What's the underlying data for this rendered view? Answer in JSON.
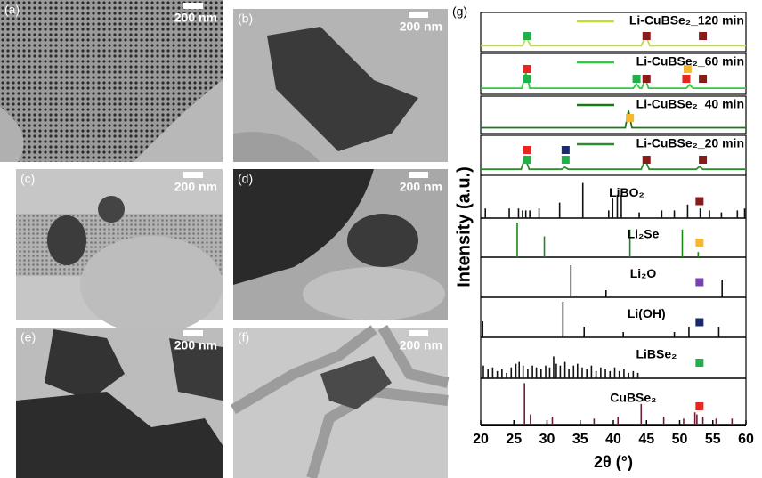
{
  "images": [
    {
      "label": "(a)",
      "scale": "200 nm"
    },
    {
      "label": "(b)",
      "scale": "200 nm"
    },
    {
      "label": "(c)",
      "scale": "200 nm"
    },
    {
      "label": "(d)",
      "scale": "200 nm"
    },
    {
      "label": "(e)",
      "scale": "200 nm"
    },
    {
      "label": "(f)",
      "scale": "200 nm"
    }
  ],
  "chart_data": {
    "type": "xrd",
    "panel_label": "(g)",
    "xlabel": "2θ (°)",
    "ylabel": "Intensity (a.u.)",
    "xlim": [
      20,
      60
    ],
    "xticks": [
      20,
      25,
      30,
      35,
      40,
      45,
      50,
      55,
      60
    ],
    "ylim": [
      0,
      1
    ],
    "patterns": [
      {
        "name": "Li-CuBSe₂_120 min",
        "color": "#c2dc3c",
        "x": [
          20,
          26.3,
          26.9,
          27.5,
          44.2,
          44.9,
          45.5,
          60
        ],
        "values": [
          0.1,
          0.1,
          0.35,
          0.1,
          0.1,
          0.4,
          0.1,
          0.1
        ],
        "markers": [
          {
            "x": 27,
            "color": "#22b04a"
          },
          {
            "x": 45,
            "color": "#8b1a1a"
          },
          {
            "x": 53.5,
            "color": "#8b1a1a"
          }
        ]
      },
      {
        "name": "Li-CuBSe₂_60 min",
        "color": "#2ecc40",
        "x": [
          20,
          26.2,
          26.8,
          27.4,
          43,
          43.5,
          44,
          44.3,
          44.8,
          45.3,
          51,
          51.5,
          52,
          60
        ],
        "values": [
          0.1,
          0.1,
          0.55,
          0.1,
          0.1,
          0.22,
          0.1,
          0.1,
          0.38,
          0.1,
          0.1,
          0.2,
          0.1,
          0.1
        ],
        "markers": [
          {
            "x": 27,
            "color": "#22b04a"
          },
          {
            "x": 27,
            "color": "#e8261f"
          },
          {
            "x": 43.5,
            "color": "#22b04a"
          },
          {
            "x": 45,
            "color": "#8b1a1a"
          },
          {
            "x": 51,
            "color": "#e8261f"
          },
          {
            "x": 51.2,
            "color": "#f5b82e"
          },
          {
            "x": 53.5,
            "color": "#8b1a1a"
          }
        ]
      },
      {
        "name": "Li-CuBSe₂_40 min",
        "color": "#1a7a1a",
        "x": [
          20,
          41.8,
          42.3,
          42.8,
          60
        ],
        "values": [
          0.1,
          0.1,
          0.65,
          0.1,
          0.1
        ],
        "markers": [
          {
            "x": 42.5,
            "color": "#f5b82e"
          }
        ]
      },
      {
        "name": "Li-CuBSe₂_20 min",
        "color": "#2e8b2e",
        "x": [
          20,
          26.1,
          26.7,
          27.3,
          32.2,
          32.7,
          33.2,
          44.2,
          44.8,
          45.4,
          52.5,
          53,
          53.5,
          60
        ],
        "values": [
          0.1,
          0.1,
          0.45,
          0.1,
          0.1,
          0.16,
          0.1,
          0.1,
          0.38,
          0.1,
          0.1,
          0.18,
          0.1,
          0.1
        ],
        "markers": [
          {
            "x": 27,
            "color": "#22b04a"
          },
          {
            "x": 27,
            "color": "#e8261f"
          },
          {
            "x": 32.8,
            "color": "#22b04a"
          },
          {
            "x": 32.8,
            "color": "#1a2a6c"
          },
          {
            "x": 45,
            "color": "#8b1a1a"
          },
          {
            "x": 53.5,
            "color": "#8b1a1a"
          }
        ]
      }
    ],
    "references": [
      {
        "name": "LiBO₂",
        "color": "#111111",
        "marker": "#8b1a1a",
        "x": [
          20.7,
          24.3,
          25.7,
          26.3,
          26.8,
          27.4,
          28.8,
          31.9,
          35.4,
          39.3,
          39.9,
          40.6,
          41.2,
          43.9,
          47.3,
          49.2,
          51.2,
          53.1,
          54.5,
          56.3,
          58.7,
          59.8
        ],
        "values": [
          0.2,
          0.2,
          0.2,
          0.15,
          0.15,
          0.15,
          0.2,
          0.35,
          0.85,
          0.15,
          0.45,
          0.55,
          0.55,
          0.1,
          0.15,
          0.15,
          0.3,
          0.2,
          0.15,
          0.1,
          0.15,
          0.2
        ]
      },
      {
        "name": "Li₂Se",
        "color": "#1a8a1a",
        "marker": "#f5b82e",
        "x": [
          25.5,
          29.6,
          42.5,
          50.4,
          52.8
        ],
        "values": [
          0.95,
          0.55,
          0.75,
          0.75,
          0.1
        ]
      },
      {
        "name": "Li₂O",
        "color": "#111111",
        "marker": "#7b3fb5",
        "x": [
          33.6,
          38.9,
          56.4
        ],
        "values": [
          0.85,
          0.15,
          0.45
        ]
      },
      {
        "name": "Li(OH)",
        "color": "#111111",
        "marker": "#1a2a6c",
        "x": [
          20.3,
          32.4,
          35.6,
          41.5,
          49.2,
          51.4,
          55.9
        ],
        "values": [
          0.4,
          0.95,
          0.25,
          0.1,
          0.1,
          0.25,
          0.25
        ]
      },
      {
        "name": "LiBSe₂",
        "color": "#111111",
        "marker": "#22b04a",
        "x": [
          20.4,
          21.1,
          21.8,
          22.5,
          23.2,
          23.9,
          24.6,
          25.3,
          25.8,
          26.4,
          27.1,
          27.8,
          28.4,
          29.1,
          29.8,
          30.4,
          31.0,
          31.4,
          32.0,
          32.7,
          33.3,
          34.0,
          34.6,
          35.3,
          36.0,
          36.7,
          37.4,
          38.1,
          38.8,
          39.5,
          40.2,
          40.9,
          41.6,
          42.3,
          43.0,
          43.7
        ],
        "values": [
          0.3,
          0.2,
          0.25,
          0.15,
          0.2,
          0.1,
          0.25,
          0.35,
          0.4,
          0.3,
          0.2,
          0.3,
          0.25,
          0.2,
          0.3,
          0.25,
          0.55,
          0.35,
          0.3,
          0.4,
          0.2,
          0.3,
          0.35,
          0.25,
          0.2,
          0.3,
          0.15,
          0.25,
          0.2,
          0.15,
          0.25,
          0.15,
          0.2,
          0.1,
          0.15,
          0.1
        ]
      },
      {
        "name": "CuBSe₂",
        "color": "#6b1f3a",
        "marker": "#e8261f",
        "x": [
          26.6,
          27.5,
          30.8,
          37.1,
          40.7,
          44.2,
          47.6,
          50.6,
          52.3,
          52.6,
          53.5,
          55.5,
          57.9
        ],
        "values": [
          0.95,
          0.2,
          0.15,
          0.1,
          0.15,
          0.45,
          0.15,
          0.1,
          0.25,
          0.2,
          0.15,
          0.1,
          0.1
        ]
      }
    ]
  }
}
